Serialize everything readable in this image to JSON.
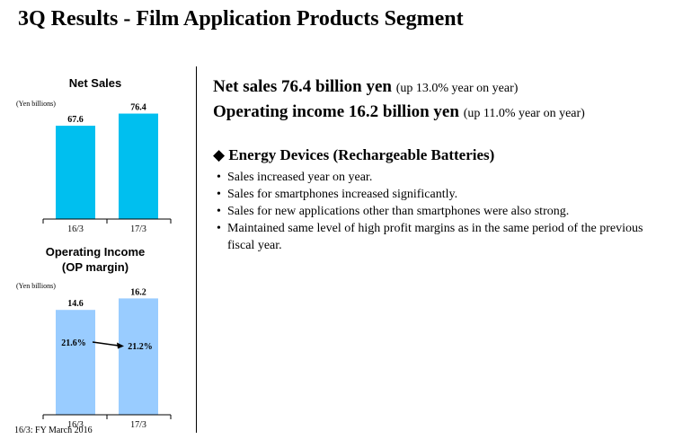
{
  "title": "3Q Results - Film Application Products Segment",
  "footnote": "16/3: FY March 2016",
  "chart_data": [
    {
      "type": "bar",
      "title": "Net Sales",
      "unit_label": "(Yen billions)",
      "categories": [
        "16/3",
        "17/3"
      ],
      "values": [
        67.6,
        76.4
      ],
      "value_labels": [
        "67.6",
        "76.4"
      ],
      "ylim": [
        0,
        80
      ],
      "bar_color": "#00bfef",
      "grid": false
    },
    {
      "type": "bar",
      "title": "Operating Income\n(OP margin)",
      "unit_label": "(Yen billions)",
      "categories": [
        "16/3",
        "17/3"
      ],
      "values": [
        14.6,
        16.2
      ],
      "value_labels": [
        "14.6",
        "16.2"
      ],
      "margins": [
        "21.6%",
        "21.2%"
      ],
      "ylim": [
        0,
        17
      ],
      "bar_color": "#99ccff",
      "grid": false
    }
  ],
  "summary": {
    "net_sales": {
      "main": "Net sales 76.4 billion yen",
      "paren": "(up 13.0% year on year)"
    },
    "operating_income": {
      "main": "Operating income 16.2 billion yen",
      "paren": "(up 11.0% year on year)"
    }
  },
  "section": {
    "heading": "◆ Energy Devices (Rechargeable Batteries)",
    "bullets": [
      "Sales increased year on year.",
      "Sales for smartphones increased significantly.",
      "Sales for new applications other than smartphones were also strong.",
      "Maintained same level of high profit margins as in the same period of the previous fiscal year."
    ]
  }
}
